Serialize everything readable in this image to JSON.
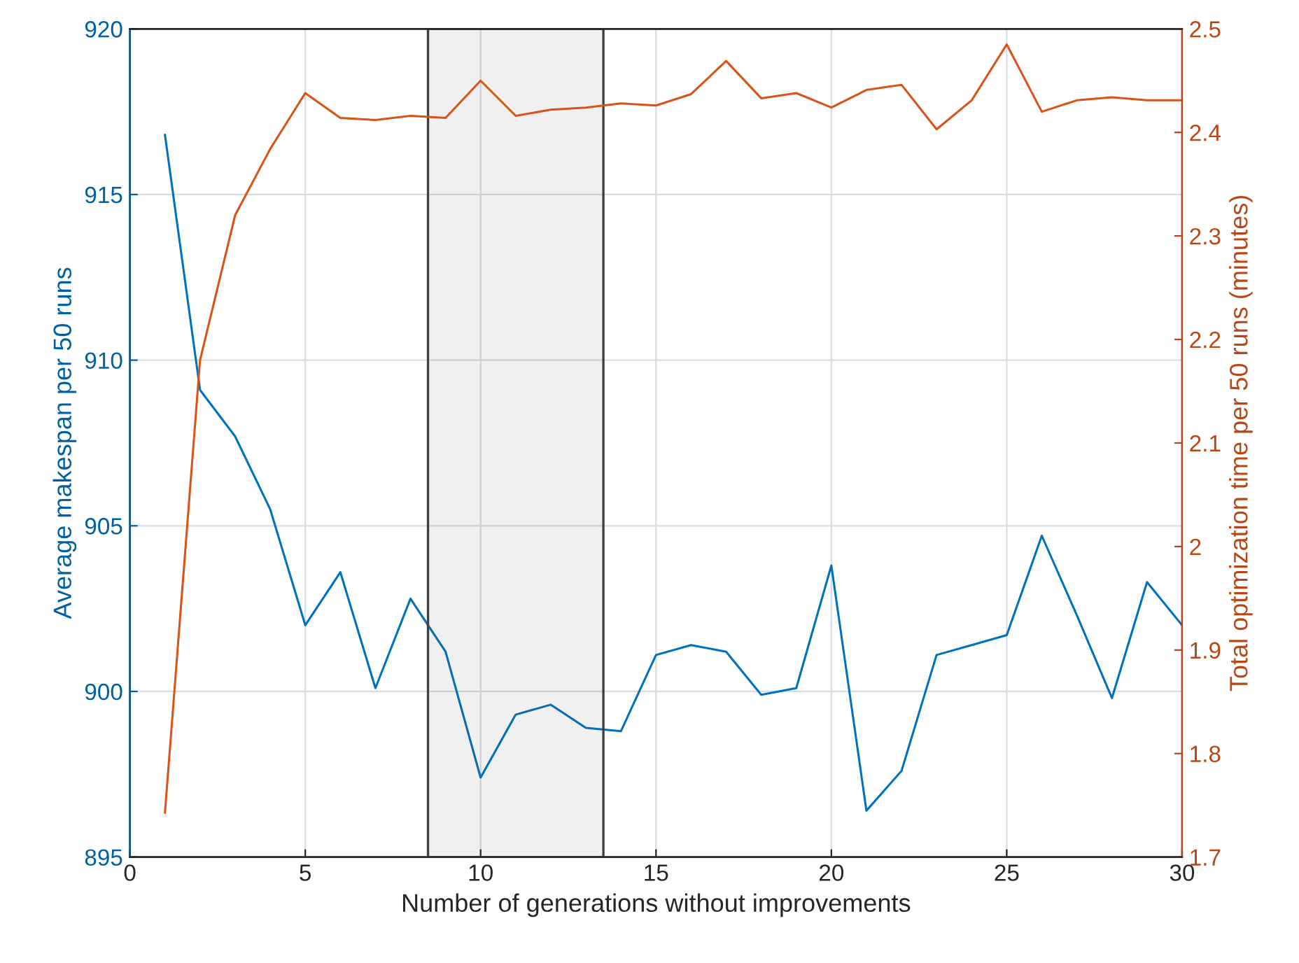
{
  "chart_data": {
    "type": "line",
    "xlabel": "Number of generations without improvements",
    "ylabel": "Average makespan per 50 runs",
    "y2label": "Total optimization time per 50 runs (minutes)",
    "x": [
      1,
      2,
      3,
      4,
      5,
      6,
      7,
      8,
      9,
      10,
      11,
      12,
      13,
      14,
      15,
      16,
      17,
      18,
      19,
      20,
      21,
      22,
      23,
      24,
      25,
      26,
      27,
      28,
      29,
      30
    ],
    "series": [
      {
        "color": "#0072bd",
        "values": [
          916.8,
          909.1,
          907.7,
          905.5,
          902.0,
          903.6,
          900.1,
          902.8,
          901.2,
          897.4,
          899.3,
          899.6,
          898.9,
          898.8,
          901.1,
          901.4,
          901.2,
          899.9,
          900.1,
          903.8,
          896.4,
          897.6,
          901.1,
          901.4,
          901.7,
          904.7,
          902.3,
          899.8,
          903.3,
          902.0
        ]
      },
      {
        "color": "#d95319",
        "axis": "y2",
        "values": [
          1.743,
          2.18,
          2.32,
          2.384,
          2.438,
          2.414,
          2.412,
          2.416,
          2.414,
          2.45,
          2.416,
          2.422,
          2.424,
          2.428,
          2.426,
          2.437,
          2.469,
          2.433,
          2.438,
          2.424,
          2.441,
          2.446,
          2.403,
          2.431,
          2.485,
          2.42,
          2.431,
          2.434,
          2.431,
          2.431
        ]
      }
    ],
    "xlim": [
      0,
      30
    ],
    "xticks": [
      0,
      5,
      10,
      15,
      20,
      25,
      30
    ],
    "ylim": [
      895,
      920
    ],
    "yticks": [
      895,
      900,
      905,
      910,
      915,
      920
    ],
    "y2lim": [
      1.7,
      2.5
    ],
    "y2ticks": [
      1.7,
      1.8,
      1.9,
      2,
      2.1,
      2.2,
      2.3,
      2.4,
      2.5
    ],
    "bands": [
      {
        "axis": "x",
        "from": 8.5,
        "to": 13.5,
        "color": "#404040"
      }
    ],
    "grid": true
  }
}
